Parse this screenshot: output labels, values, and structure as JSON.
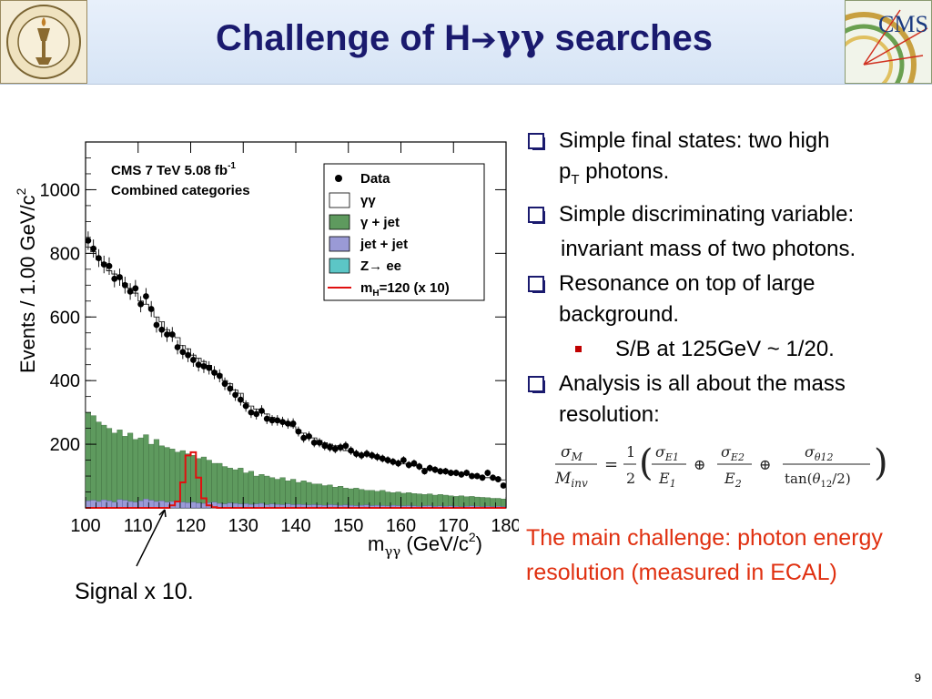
{
  "slide": {
    "title_prefix": "Challenge of H",
    "title_arrow": "➔",
    "title_greek": "γγ",
    "title_suffix": " searches",
    "page_number": "9",
    "left_logo_text": "CALIFORNIA INSTITUTE OF TECHNOLOGY 1891",
    "right_logo_text": "CMS"
  },
  "bullets": {
    "b1_line1": "Simple final states: two high",
    "b1_line2_a": "p",
    "b1_line2_sub": "T",
    "b1_line2_b": " photons.",
    "b2": "Simple discriminating variable:",
    "b2_cont": "invariant mass of two photons.",
    "b3": "Resonance on top of large background.",
    "b3_sub": "S/B at 125GeV ~ 1/20.",
    "b4": "Analysis is all about the mass resolution:"
  },
  "formula_text": "σM/Minv = 1/2 (σE1/E1 ⊕ σE2/E2 ⊕ σθ12/tan(θ12/2))",
  "challenge_text": "The main challenge: photon energy resolution (measured in ECAL)",
  "signal_label": "Signal x 10.",
  "colors": {
    "title": "#1a1a6e",
    "challenge": "#e03010",
    "gamma_jet": "#5e9a5e",
    "jet_jet": "#9a9ad6",
    "zee": "#5cc6c6",
    "signal": "#e01010"
  },
  "chart_data": {
    "type": "histogram",
    "header_text": "CMS 7 TeV 5.08 fb",
    "header_sup": "-1",
    "subheader": "Combined categories",
    "xlabel_main": "m",
    "xlabel_sub": "γγ",
    "xlabel_units": " (GeV/c",
    "xlabel_units_sup": "2",
    "xlabel_units_end": ")",
    "ylabel": "Events / 1.00 GeV/c",
    "ylabel_sup": "2",
    "xlim": [
      100,
      180
    ],
    "ylim": [
      0,
      1150
    ],
    "x_ticks": [
      100,
      110,
      120,
      130,
      140,
      150,
      160,
      170,
      180
    ],
    "y_ticks": [
      200,
      400,
      600,
      800,
      1000
    ],
    "legend": {
      "data": "Data",
      "gg": "γγ",
      "gjet": "γ + jet",
      "jetjet": "jet + jet",
      "zee": "Z→ ee",
      "signal": "m",
      "signal_sub": "H",
      "signal_end": "=120 (x 10)"
    },
    "data_points": [
      [
        100.5,
        840
      ],
      [
        101.5,
        815
      ],
      [
        102.5,
        785
      ],
      [
        103.5,
        765
      ],
      [
        104.5,
        760
      ],
      [
        105.5,
        720
      ],
      [
        106.5,
        725
      ],
      [
        107.5,
        700
      ],
      [
        108.5,
        680
      ],
      [
        109.5,
        690
      ],
      [
        110.5,
        640
      ],
      [
        111.5,
        665
      ],
      [
        112.5,
        625
      ],
      [
        113.5,
        575
      ],
      [
        114.5,
        560
      ],
      [
        115.5,
        545
      ],
      [
        116.5,
        545
      ],
      [
        117.5,
        505
      ],
      [
        118.5,
        490
      ],
      [
        119.5,
        480
      ],
      [
        120.5,
        465
      ],
      [
        121.5,
        450
      ],
      [
        122.5,
        445
      ],
      [
        123.5,
        440
      ],
      [
        124.5,
        425
      ],
      [
        125.5,
        415
      ],
      [
        126.5,
        390
      ],
      [
        127.5,
        375
      ],
      [
        128.5,
        355
      ],
      [
        129.5,
        340
      ],
      [
        130.5,
        320
      ],
      [
        131.5,
        300
      ],
      [
        132.5,
        295
      ],
      [
        133.5,
        305
      ],
      [
        134.5,
        280
      ],
      [
        135.5,
        275
      ],
      [
        136.5,
        275
      ],
      [
        137.5,
        270
      ],
      [
        138.5,
        265
      ],
      [
        139.5,
        265
      ],
      [
        140.5,
        240
      ],
      [
        141.5,
        220
      ],
      [
        142.5,
        225
      ],
      [
        143.5,
        205
      ],
      [
        144.5,
        205
      ],
      [
        145.5,
        195
      ],
      [
        146.5,
        190
      ],
      [
        147.5,
        185
      ],
      [
        148.5,
        190
      ],
      [
        149.5,
        195
      ],
      [
        150.5,
        180
      ],
      [
        151.5,
        170
      ],
      [
        152.5,
        165
      ],
      [
        153.5,
        170
      ],
      [
        154.5,
        165
      ],
      [
        155.5,
        160
      ],
      [
        156.5,
        155
      ],
      [
        157.5,
        150
      ],
      [
        158.5,
        145
      ],
      [
        159.5,
        140
      ],
      [
        160.5,
        150
      ],
      [
        161.5,
        135
      ],
      [
        162.5,
        140
      ],
      [
        163.5,
        130
      ],
      [
        164.5,
        115
      ],
      [
        165.5,
        125
      ],
      [
        166.5,
        120
      ],
      [
        167.5,
        115
      ],
      [
        168.5,
        115
      ],
      [
        169.5,
        110
      ],
      [
        170.5,
        110
      ],
      [
        171.5,
        105
      ],
      [
        172.5,
        110
      ],
      [
        173.5,
        100
      ],
      [
        174.5,
        100
      ],
      [
        175.5,
        95
      ],
      [
        176.5,
        110
      ],
      [
        177.5,
        95
      ],
      [
        178.5,
        90
      ],
      [
        179.5,
        70
      ]
    ],
    "gamma_jet_stack": [
      300,
      290,
      270,
      260,
      250,
      235,
      245,
      225,
      235,
      215,
      220,
      230,
      200,
      215,
      195,
      190,
      185,
      175,
      180,
      170,
      165,
      155,
      160,
      150,
      140,
      140,
      130,
      125,
      120,
      125,
      110,
      115,
      100,
      105,
      100,
      95,
      90,
      95,
      85,
      90,
      80,
      85,
      80,
      75,
      75,
      70,
      72,
      65,
      68,
      62,
      60,
      62,
      58,
      55,
      55,
      52,
      55,
      50,
      48,
      50,
      46,
      48,
      45,
      44,
      42,
      44,
      40,
      42,
      40,
      38,
      36,
      38,
      35,
      36,
      34,
      33,
      32,
      30,
      30,
      28
    ],
    "jet_jet_stack": [
      22,
      24,
      20,
      25,
      22,
      18,
      26,
      24,
      20,
      18,
      22,
      28,
      24,
      20,
      22,
      18,
      20,
      22,
      18,
      16,
      18,
      15,
      14,
      16,
      18,
      14,
      12,
      15,
      14,
      12,
      13,
      11,
      12,
      14,
      10,
      12,
      11,
      10,
      12,
      10,
      11,
      10,
      9,
      10,
      9,
      8,
      10,
      9,
      8,
      9,
      8,
      7,
      8,
      9,
      7,
      8,
      7,
      6,
      8,
      7,
      6,
      7,
      6,
      5,
      6,
      7,
      5,
      6,
      5,
      6,
      5,
      4,
      5,
      6,
      5,
      4,
      5,
      4,
      5,
      4
    ],
    "gg_total": [
      820,
      805,
      780,
      770,
      745,
      735,
      720,
      705,
      690,
      675,
      650,
      640,
      625,
      600,
      585,
      560,
      548,
      535,
      510,
      500,
      480,
      470,
      460,
      448,
      430,
      420,
      400,
      390,
      370,
      360,
      330,
      320,
      310,
      305,
      295,
      285,
      275,
      270,
      262,
      255,
      245,
      235,
      228,
      220,
      212,
      205,
      200,
      195,
      188,
      180,
      176,
      172,
      168,
      165,
      160,
      156,
      152,
      148,
      144,
      140,
      138,
      135,
      132,
      128,
      124,
      120,
      118,
      116,
      112,
      110,
      108,
      106,
      104,
      100,
      98,
      96,
      95,
      92,
      90,
      88
    ],
    "signal_x10": {
      "x": [
        116,
        117,
        118,
        119,
        120,
        121,
        122,
        123,
        124
      ],
      "y": [
        8,
        20,
        80,
        165,
        175,
        95,
        30,
        8,
        2
      ]
    }
  }
}
